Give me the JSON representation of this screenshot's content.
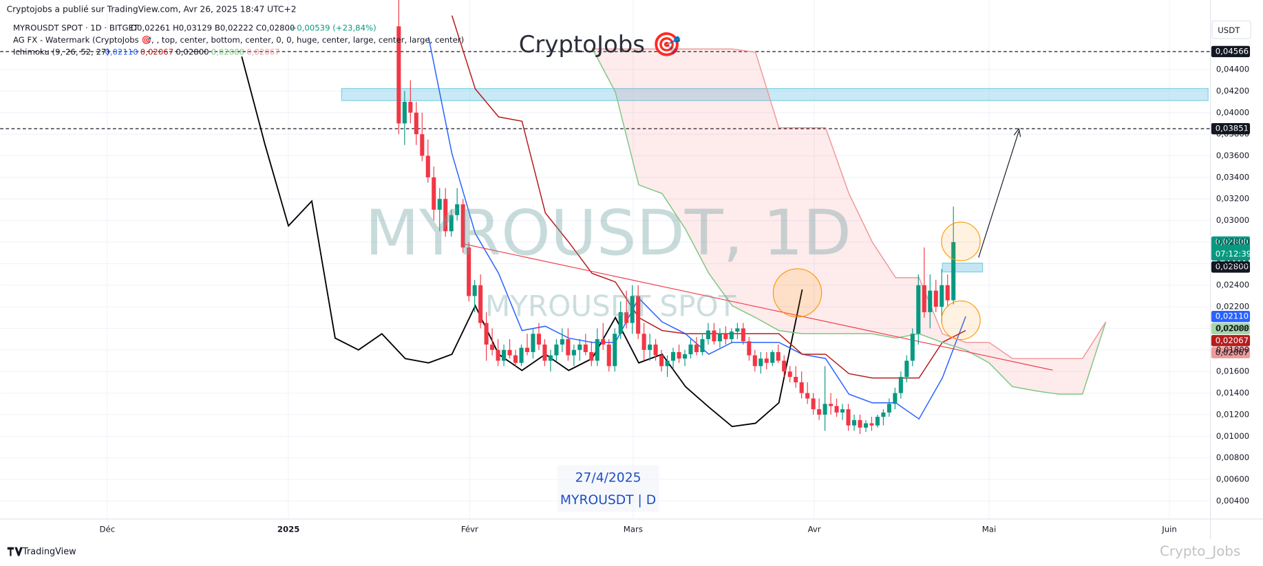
{
  "header": {
    "published": "Cryptojobs a publié sur TradingView.com, Avr 26, 2025 18:47 UTC+2",
    "symbol": "MYROUSDT SPOT · 1D · BITGET",
    "ohlc": "O0,02261 H0,03129 B0,02222 C0,02800",
    "change": "+0,00539 (+23,84%)",
    "watermark_indicator": "AG FX - Watermark (CryptoJobs 🎯, , top, center, bottom, center, 0, 0, huge, center, large, center, large, center)",
    "ichimoku": "Ichimoku (9, 26, 52, 27)",
    "ichimoku_values": [
      {
        "label": "0,02110",
        "color": "#2962ff"
      },
      {
        "label": "0,02067",
        "color": "#b71c1c"
      },
      {
        "label": "0,02800",
        "color": "#131722"
      },
      {
        "label": "0,02088",
        "color": "#81c784"
      },
      {
        "label": "0,02067",
        "color": "#ef9a9a"
      }
    ]
  },
  "watermarks": {
    "brand": "CryptoJobs 🎯",
    "big": "MYROUSDT, 1D",
    "spot": "MYROUSDT SPOT",
    "date": "27/4/2025",
    "ticker": "MYROUSDT | D"
  },
  "footer": {
    "logo": "TradingView",
    "author": "Crypto_Jobs"
  },
  "chart_data": {
    "type": "candlestick",
    "currency": "USDT",
    "x_labels": [
      "Déc",
      "2025",
      "Févr",
      "Mars",
      "Avr",
      "Mai",
      "Juin"
    ],
    "ylim": [
      0.0027,
      0.0488
    ],
    "yticks": [
      {
        "value": 0.004,
        "label": "0,00400"
      },
      {
        "value": 0.006,
        "label": "0,00600"
      },
      {
        "value": 0.008,
        "label": "0,00800"
      },
      {
        "value": 0.01,
        "label": "0,01000"
      },
      {
        "value": 0.012,
        "label": "0,01200"
      },
      {
        "value": 0.014,
        "label": "0,01400"
      },
      {
        "value": 0.016,
        "label": "0,01600"
      },
      {
        "value": 0.018,
        "label": "0,01800"
      },
      {
        "value": 0.02,
        "label": "0,02000"
      },
      {
        "value": 0.022,
        "label": "0,02200"
      },
      {
        "value": 0.024,
        "label": "0,02400"
      },
      {
        "value": 0.026,
        "label": "0,02600"
      },
      {
        "value": 0.028,
        "label": "0,02800"
      },
      {
        "value": 0.03,
        "label": "0,03000"
      },
      {
        "value": 0.032,
        "label": "0,03200"
      },
      {
        "value": 0.034,
        "label": "0,03400"
      },
      {
        "value": 0.036,
        "label": "0,03600"
      },
      {
        "value": 0.038,
        "label": "0,03800"
      },
      {
        "value": 0.04,
        "label": "0,04000"
      },
      {
        "value": 0.042,
        "label": "0,04200"
      },
      {
        "value": 0.044,
        "label": "0,04400"
      }
    ],
    "grid": true,
    "up_color": "#089981",
    "down_color": "#f23645",
    "candles": [
      [
        0.048,
        0.052,
        0.038,
        0.039
      ],
      [
        0.039,
        0.042,
        0.037,
        0.041
      ],
      [
        0.041,
        0.043,
        0.039,
        0.04
      ],
      [
        0.04,
        0.041,
        0.037,
        0.038
      ],
      [
        0.038,
        0.04,
        0.0355,
        0.036
      ],
      [
        0.036,
        0.0375,
        0.0335,
        0.034
      ],
      [
        0.034,
        0.035,
        0.03,
        0.031
      ],
      [
        0.031,
        0.033,
        0.029,
        0.032
      ],
      [
        0.032,
        0.033,
        0.0285,
        0.029
      ],
      [
        0.029,
        0.031,
        0.0285,
        0.0305
      ],
      [
        0.0305,
        0.033,
        0.03,
        0.0315
      ],
      [
        0.0315,
        0.032,
        0.027,
        0.0275
      ],
      [
        0.0275,
        0.028,
        0.0225,
        0.023
      ],
      [
        0.023,
        0.0245,
        0.0215,
        0.024
      ],
      [
        0.024,
        0.025,
        0.02,
        0.0205
      ],
      [
        0.0205,
        0.0215,
        0.017,
        0.0185
      ],
      [
        0.0185,
        0.02,
        0.0175,
        0.018
      ],
      [
        0.018,
        0.019,
        0.0165,
        0.017
      ],
      [
        0.017,
        0.0185,
        0.0165,
        0.018
      ],
      [
        0.018,
        0.019,
        0.0172,
        0.0175
      ],
      [
        0.0175,
        0.018,
        0.0165,
        0.0168
      ],
      [
        0.0168,
        0.0185,
        0.0165,
        0.0182
      ],
      [
        0.0182,
        0.0195,
        0.0175,
        0.0178
      ],
      [
        0.0178,
        0.02,
        0.0172,
        0.0195
      ],
      [
        0.0195,
        0.0205,
        0.018,
        0.0185
      ],
      [
        0.0185,
        0.019,
        0.0165,
        0.017
      ],
      [
        0.017,
        0.018,
        0.016,
        0.0175
      ],
      [
        0.0175,
        0.019,
        0.017,
        0.0185
      ],
      [
        0.0185,
        0.02,
        0.0178,
        0.019
      ],
      [
        0.019,
        0.02,
        0.017,
        0.0175
      ],
      [
        0.0175,
        0.0185,
        0.0165,
        0.018
      ],
      [
        0.018,
        0.019,
        0.017,
        0.0185
      ],
      [
        0.0185,
        0.0195,
        0.0175,
        0.0178
      ],
      [
        0.0178,
        0.0188,
        0.0165,
        0.017
      ],
      [
        0.017,
        0.02,
        0.0165,
        0.019
      ],
      [
        0.019,
        0.0205,
        0.018,
        0.0185
      ],
      [
        0.0185,
        0.019,
        0.016,
        0.0165
      ],
      [
        0.0165,
        0.02,
        0.016,
        0.0195
      ],
      [
        0.0195,
        0.0225,
        0.019,
        0.0215
      ],
      [
        0.0215,
        0.0235,
        0.02,
        0.0205
      ],
      [
        0.0205,
        0.024,
        0.0195,
        0.023
      ],
      [
        0.023,
        0.024,
        0.019,
        0.0195
      ],
      [
        0.0195,
        0.0205,
        0.017,
        0.018
      ],
      [
        0.018,
        0.0195,
        0.017,
        0.0185
      ],
      [
        0.0185,
        0.019,
        0.017,
        0.0175
      ],
      [
        0.0175,
        0.018,
        0.016,
        0.0165
      ],
      [
        0.0165,
        0.0175,
        0.0155,
        0.017
      ],
      [
        0.017,
        0.0182,
        0.0162,
        0.0178
      ],
      [
        0.0178,
        0.0185,
        0.0168,
        0.0172
      ],
      [
        0.0172,
        0.018,
        0.0165,
        0.0176
      ],
      [
        0.0176,
        0.019,
        0.0172,
        0.0185
      ],
      [
        0.0185,
        0.0192,
        0.0175,
        0.0178
      ],
      [
        0.0178,
        0.0195,
        0.0175,
        0.019
      ],
      [
        0.019,
        0.0205,
        0.0185,
        0.0198
      ],
      [
        0.0198,
        0.0205,
        0.0185,
        0.0188
      ],
      [
        0.0188,
        0.02,
        0.0182,
        0.0195
      ],
      [
        0.0195,
        0.0202,
        0.0185,
        0.019
      ],
      [
        0.019,
        0.02,
        0.0186,
        0.0197
      ],
      [
        0.0197,
        0.0205,
        0.019,
        0.02
      ],
      [
        0.02,
        0.0205,
        0.0185,
        0.0188
      ],
      [
        0.0188,
        0.0192,
        0.017,
        0.0175
      ],
      [
        0.0175,
        0.018,
        0.016,
        0.0165
      ],
      [
        0.0165,
        0.0178,
        0.0158,
        0.0172
      ],
      [
        0.0172,
        0.0178,
        0.0162,
        0.0168
      ],
      [
        0.0168,
        0.018,
        0.0165,
        0.0178
      ],
      [
        0.0178,
        0.0185,
        0.0168,
        0.017
      ],
      [
        0.017,
        0.0175,
        0.0155,
        0.016
      ],
      [
        0.016,
        0.0165,
        0.015,
        0.0155
      ],
      [
        0.0155,
        0.0165,
        0.0145,
        0.015
      ],
      [
        0.015,
        0.016,
        0.0135,
        0.014
      ],
      [
        0.014,
        0.015,
        0.013,
        0.0135
      ],
      [
        0.0135,
        0.014,
        0.012,
        0.0125
      ],
      [
        0.0125,
        0.0135,
        0.0115,
        0.012
      ],
      [
        0.012,
        0.0165,
        0.0105,
        0.013
      ],
      [
        0.013,
        0.014,
        0.012,
        0.0128
      ],
      [
        0.0128,
        0.0135,
        0.0118,
        0.0122
      ],
      [
        0.0122,
        0.013,
        0.0115,
        0.0125
      ],
      [
        0.0125,
        0.013,
        0.0105,
        0.011
      ],
      [
        0.011,
        0.012,
        0.0105,
        0.0115
      ],
      [
        0.0115,
        0.012,
        0.0102,
        0.0108
      ],
      [
        0.0108,
        0.0115,
        0.0104,
        0.0112
      ],
      [
        0.0112,
        0.0118,
        0.0105,
        0.011
      ],
      [
        0.011,
        0.012,
        0.0108,
        0.0118
      ],
      [
        0.0118,
        0.0125,
        0.011,
        0.0122
      ],
      [
        0.0122,
        0.0135,
        0.0118,
        0.013
      ],
      [
        0.013,
        0.0145,
        0.0125,
        0.014
      ],
      [
        0.014,
        0.016,
        0.0135,
        0.0155
      ],
      [
        0.0155,
        0.0175,
        0.015,
        0.017
      ],
      [
        0.017,
        0.02,
        0.0165,
        0.0195
      ],
      [
        0.0195,
        0.025,
        0.0185,
        0.024
      ],
      [
        0.024,
        0.0275,
        0.021,
        0.0215
      ],
      [
        0.0215,
        0.025,
        0.02,
        0.0235
      ],
      [
        0.0235,
        0.0245,
        0.0215,
        0.022
      ],
      [
        0.022,
        0.0255,
        0.0205,
        0.024
      ],
      [
        0.024,
        0.025,
        0.022,
        0.0226
      ],
      [
        0.02261,
        0.03129,
        0.02222,
        0.028
      ]
    ],
    "lines": [
      {
        "color": "#000000",
        "values": [
          0.0452,
          0.037,
          0.0295,
          0.0318,
          0.0191,
          0.018,
          0.0195,
          0.0172,
          0.0168,
          0.0176,
          0.0221,
          0.0176,
          0.0161,
          0.0176,
          0.0161,
          0.0172,
          0.021,
          0.0168,
          0.0176,
          0.0146,
          0.0127,
          0.0109,
          0.0112,
          0.0131,
          0.0236,
          null,
          null,
          null,
          null,
          null,
          null,
          null,
          null,
          null,
          null,
          null,
          null,
          null
        ]
      },
      {
        "color": "#2962ff",
        "values": [
          null,
          null,
          null,
          null,
          null,
          null,
          null,
          null,
          0.047,
          0.0362,
          0.0288,
          0.0251,
          0.0198,
          0.0202,
          0.0191,
          0.0187,
          0.0187,
          0.0228,
          0.0206,
          0.0195,
          0.0176,
          0.0187,
          0.0187,
          0.0187,
          0.0176,
          0.0172,
          0.0139,
          0.0131,
          0.0131,
          0.0116,
          0.0154,
          0.0211,
          null,
          null,
          null,
          null,
          null,
          null
        ]
      },
      {
        "color": "#b71c1c",
        "values": [
          null,
          null,
          null,
          null,
          null,
          null,
          null,
          null,
          null,
          0.049,
          0.0422,
          0.0396,
          0.0392,
          0.0307,
          0.028,
          0.0251,
          0.0243,
          0.021,
          0.0198,
          0.0195,
          0.0195,
          0.0195,
          0.0195,
          0.0195,
          0.0176,
          0.0176,
          0.0158,
          0.0154,
          0.0154,
          0.0154,
          0.0187,
          0.0198,
          null,
          null,
          null,
          null,
          null,
          null
        ]
      },
      {
        "color": "#81c784",
        "values": [
          null,
          null,
          null,
          null,
          null,
          null,
          null,
          null,
          null,
          null,
          null,
          null,
          null,
          null,
          null,
          0.046,
          0.0419,
          0.0333,
          0.0325,
          0.0292,
          0.0251,
          0.0221,
          0.021,
          0.0198,
          0.0195,
          0.0195,
          0.0195,
          0.0195,
          0.0191,
          0.0195,
          0.0187,
          0.018,
          0.0168,
          0.0146,
          0.0142,
          0.0139,
          0.0139,
          0.0206
        ]
      },
      {
        "color": "#ef9a9a",
        "values": [
          null,
          null,
          null,
          null,
          null,
          null,
          null,
          null,
          null,
          null,
          null,
          null,
          null,
          null,
          null,
          0.0459,
          0.0459,
          0.0459,
          0.0459,
          0.0459,
          0.0459,
          0.0459,
          0.0456,
          0.0386,
          0.0386,
          0.0386,
          0.0325,
          0.028,
          0.0247,
          0.0247,
          0.0195,
          0.0187,
          0.0187,
          0.0172,
          0.0172,
          0.0172,
          0.0172,
          0.0206
        ]
      }
    ],
    "cloud_color": "rgba(242,54,69,0.1)",
    "price_tags": [
      {
        "value": 0.04566,
        "label": "0,04566",
        "color": "#131722",
        "text_color": "#ffffff",
        "dashed": true
      },
      {
        "value": 0.03851,
        "label": "0,03851",
        "color": "#131722",
        "text_color": "#ffffff",
        "dashed": true
      },
      {
        "value": 0.028,
        "label": "0,02800",
        "sub": "07:12:39",
        "color": "#089981",
        "text_color": "#ffffff"
      },
      {
        "value": 0.028,
        "label": "0,02800",
        "color": "#131722",
        "text_color": "#ffffff"
      },
      {
        "value": 0.0211,
        "label": "0,02110",
        "color": "#2962ff",
        "text_color": "#ffffff"
      },
      {
        "value": 0.02088,
        "label": "0,02088",
        "color": "#a5d6a7",
        "text_color": "#131722"
      },
      {
        "value": 0.02067,
        "label": "0,02067",
        "color": "#b71c1c",
        "text_color": "#ffffff"
      },
      {
        "value": 0.02067,
        "label": "0,02067",
        "color": "#ef9a9a",
        "text_color": "#131722"
      }
    ]
  }
}
